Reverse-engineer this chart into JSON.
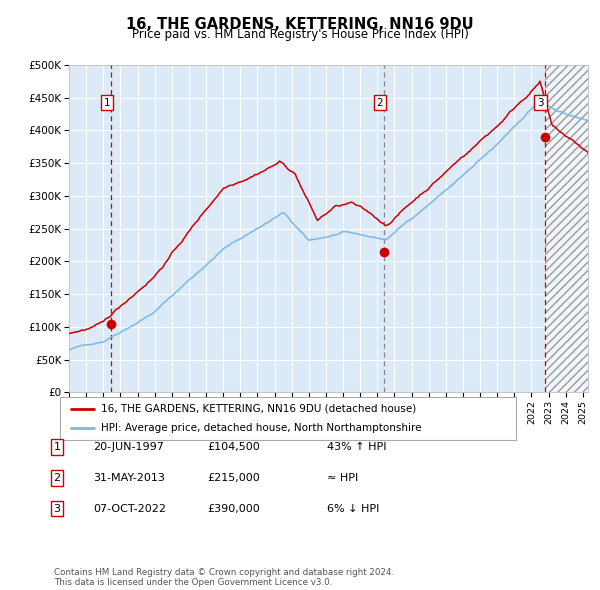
{
  "title": "16, THE GARDENS, KETTERING, NN16 9DU",
  "subtitle": "Price paid vs. HM Land Registry's House Price Index (HPI)",
  "background_color": "#dce9f7",
  "plot_bg_color": "#dce9f7",
  "grid_color": "#ffffff",
  "hpi_line_color": "#7ab8e8",
  "price_line_color": "#cc0000",
  "marker_color": "#cc0000",
  "sale1_date": 1997.47,
  "sale1_price": 104500,
  "sale2_date": 2013.41,
  "sale2_price": 215000,
  "sale3_date": 2022.77,
  "sale3_price": 390000,
  "ylim_max": 500000,
  "xlim_min": 1995,
  "xlim_max": 2025.3,
  "legend_line1": "16, THE GARDENS, KETTERING, NN16 9DU (detached house)",
  "legend_line2": "HPI: Average price, detached house, North Northamptonshire",
  "sale1_text": "20-JUN-1997",
  "sale1_amount": "£104,500",
  "sale1_note": "43% ↑ HPI",
  "sale2_text": "31-MAY-2013",
  "sale2_amount": "£215,000",
  "sale2_note": "≈ HPI",
  "sale3_text": "07-OCT-2022",
  "sale3_amount": "£390,000",
  "sale3_note": "6% ↓ HPI",
  "footer": "Contains HM Land Registry data © Crown copyright and database right 2024.\nThis data is licensed under the Open Government Licence v3.0."
}
